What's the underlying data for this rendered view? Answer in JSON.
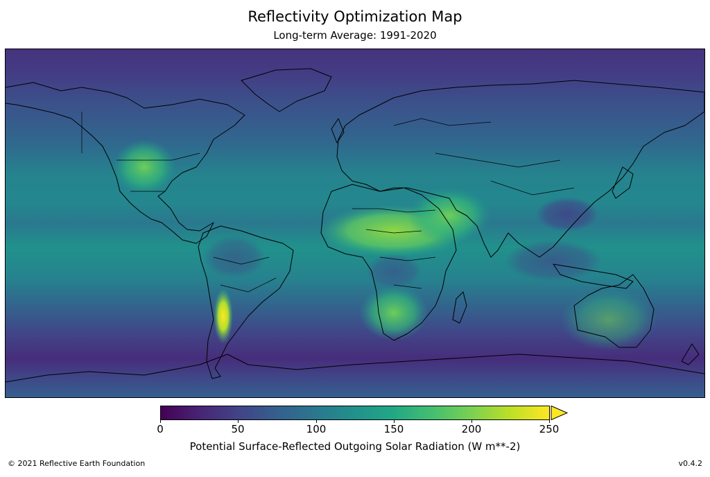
{
  "header": {
    "title": "Reflectivity Optimization Map",
    "subtitle": "Long-term Average: 1991-2020"
  },
  "colorbar": {
    "label": "Potential Surface-Reflected Outgoing Solar Radiation (W m**-2)",
    "colormap": "viridis",
    "min": 0,
    "max": 250,
    "extend": "max",
    "ticks": [
      "0",
      "50",
      "100",
      "150",
      "200",
      "250"
    ]
  },
  "footer": {
    "copyright": "© 2021 Reflective Earth Foundation",
    "version": "v0.4.2"
  },
  "map_data": {
    "projection": "equirectangular",
    "extent": "global",
    "overlay": "country and coastline borders",
    "field_levels": [
      {
        "region": "polar latitudes",
        "value": 40
      },
      {
        "region": "southern ocean",
        "value": 65
      },
      {
        "region": "mid-latitude oceans",
        "value": 100
      },
      {
        "region": "subtropical oceans",
        "value": 135
      },
      {
        "region": "equatorial pacific",
        "value": 150
      },
      {
        "region": "sahara",
        "value": 200
      },
      {
        "region": "arabian peninsula",
        "value": 180
      },
      {
        "region": "atacama / altiplano",
        "value": 250
      },
      {
        "region": "southern africa",
        "value": 175
      },
      {
        "region": "australia",
        "value": 140
      },
      {
        "region": "tibetan plateau",
        "value": 60
      },
      {
        "region": "maritime continent",
        "value": 80
      }
    ]
  }
}
